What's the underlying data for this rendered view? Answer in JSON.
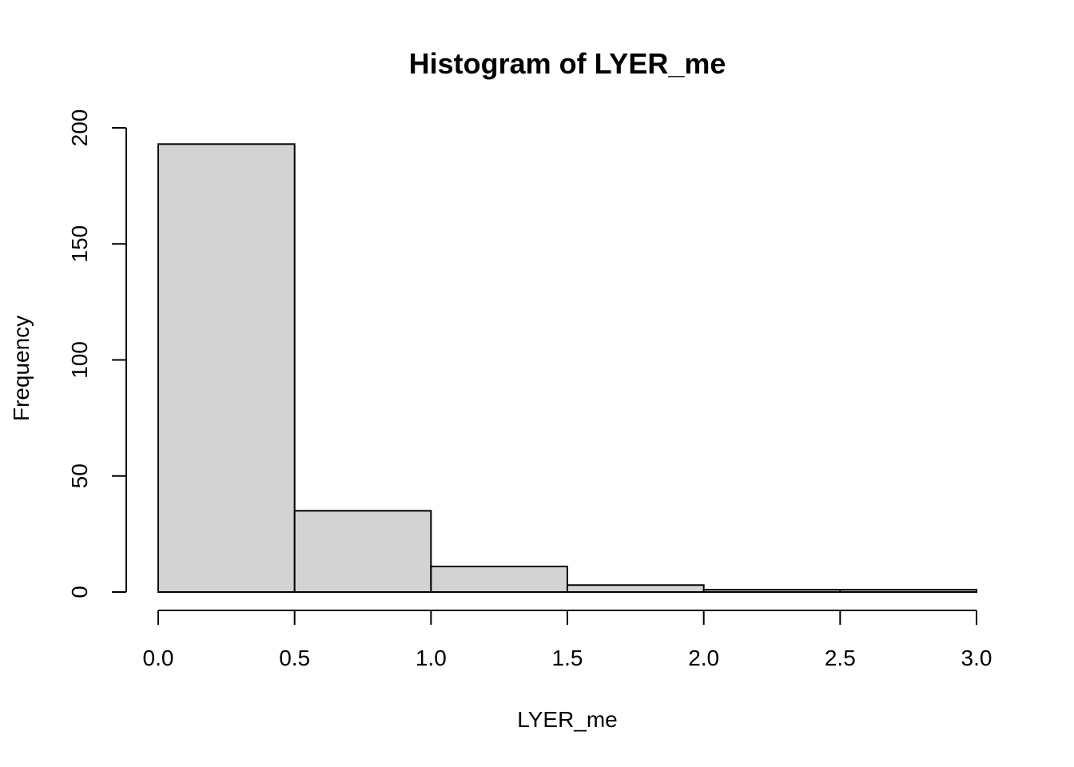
{
  "chart_data": {
    "type": "bar",
    "title": "Histogram of LYER_me",
    "xlabel": "LYER_me",
    "ylabel": "Frequency",
    "bin_edges": [
      0.0,
      0.5,
      1.0,
      1.5,
      2.0,
      2.5,
      3.0
    ],
    "values": [
      193,
      35,
      11,
      3,
      1,
      1
    ],
    "xlim": [
      0.0,
      3.0
    ],
    "ylim": [
      0,
      200
    ],
    "x_ticks": [
      "0.0",
      "0.5",
      "1.0",
      "1.5",
      "2.0",
      "2.5",
      "3.0"
    ],
    "y_ticks": [
      "0",
      "50",
      "100",
      "150",
      "200"
    ],
    "bar_color": "#d3d3d3",
    "grid": false,
    "legend": "none"
  }
}
